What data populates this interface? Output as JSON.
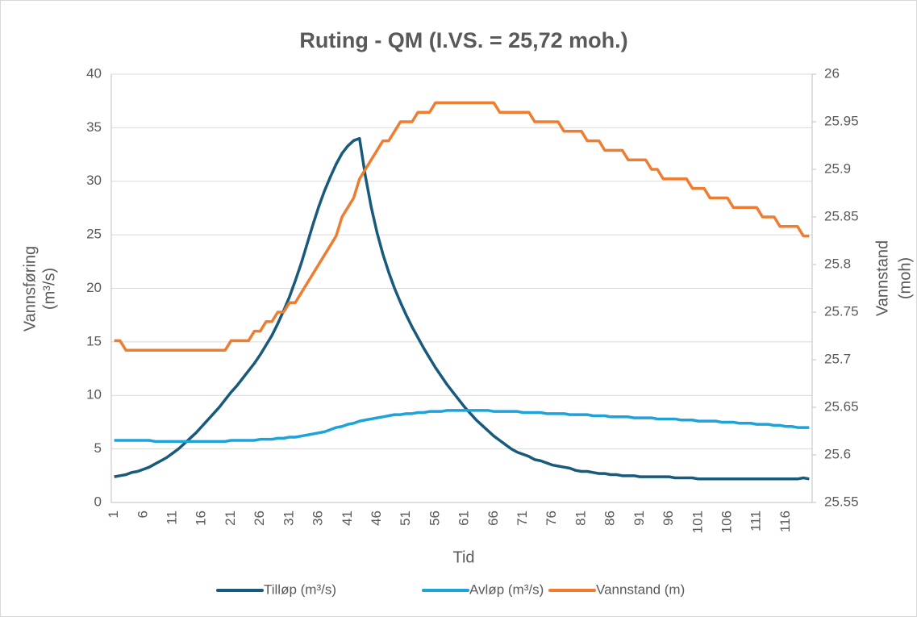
{
  "chart_data": {
    "type": "line",
    "title": "Ruting - QM  (I.VS. = 25,72 moh.)",
    "x_label": "Tid",
    "y_label": [
      "Vannsføring",
      "(m³/s)"
    ],
    "y2_label": [
      "Vannstand",
      "(moh)"
    ],
    "categories": [
      1,
      null,
      null,
      null,
      null,
      6,
      null,
      null,
      null,
      null,
      11,
      null,
      null,
      null,
      null,
      16,
      null,
      null,
      null,
      null,
      21,
      null,
      null,
      null,
      null,
      26,
      null,
      null,
      null,
      null,
      31,
      null,
      null,
      null,
      null,
      36,
      null,
      null,
      null,
      null,
      41,
      null,
      null,
      null,
      null,
      46,
      null,
      null,
      null,
      null,
      51,
      null,
      null,
      null,
      null,
      56,
      null,
      null,
      null,
      null,
      61,
      null,
      null,
      null,
      null,
      66,
      null,
      null,
      null,
      null,
      71,
      null,
      null,
      null,
      null,
      76,
      null,
      null,
      null,
      null,
      81,
      null,
      null,
      null,
      null,
      86,
      null,
      null,
      null,
      null,
      91,
      null,
      null,
      null,
      null,
      96,
      null,
      null,
      null,
      null,
      101,
      null,
      null,
      null,
      null,
      106,
      null,
      null,
      null,
      null,
      111,
      null,
      null,
      null,
      null,
      116,
      null,
      null,
      null,
      null
    ],
    "ylim": [
      0,
      40
    ],
    "yticks": [
      0,
      5,
      10,
      15,
      20,
      25,
      30,
      35,
      40
    ],
    "y2lim": [
      25.55,
      26
    ],
    "y2ticks": [
      25.55,
      25.6,
      25.65,
      25.7,
      25.75,
      25.8,
      25.85,
      25.9,
      25.95,
      26
    ],
    "grid": true,
    "legend": "bottom",
    "series": [
      {
        "name": "Tilløp (m³/s)",
        "color": "#175a7c",
        "values": [
          2.4,
          2.5,
          2.6,
          2.8,
          2.9,
          3.1,
          3.3,
          3.6,
          3.9,
          4.2,
          4.6,
          5.0,
          5.5,
          6.0,
          6.5,
          7.1,
          7.7,
          8.3,
          8.9,
          9.6,
          10.3,
          10.9,
          11.6,
          12.3,
          13.0,
          13.8,
          14.7,
          15.6,
          16.7,
          17.9,
          19.2,
          20.7,
          22.3,
          24.1,
          25.9,
          27.6,
          29.1,
          30.4,
          31.6,
          32.6,
          33.3,
          33.8,
          34.0,
          30.5,
          27.6,
          25.2,
          23.2,
          21.5,
          20.0,
          18.7,
          17.5,
          16.4,
          15.4,
          14.4,
          13.5,
          12.6,
          11.8,
          11.0,
          10.3,
          9.6,
          8.9,
          8.3,
          7.7,
          7.2,
          6.7,
          6.2,
          5.8,
          5.4,
          5.0,
          4.7,
          4.5,
          4.3,
          4.0,
          3.9,
          3.7,
          3.5,
          3.4,
          3.3,
          3.2,
          3.0,
          2.9,
          2.9,
          2.8,
          2.7,
          2.7,
          2.6,
          2.6,
          2.5,
          2.5,
          2.5,
          2.4,
          2.4,
          2.4,
          2.4,
          2.4,
          2.4,
          2.3,
          2.3,
          2.3,
          2.3,
          2.2,
          2.2,
          2.2,
          2.2,
          2.2,
          2.2,
          2.2,
          2.2,
          2.2,
          2.2,
          2.2,
          2.2,
          2.2,
          2.2,
          2.2,
          2.2,
          2.2,
          2.2,
          2.3,
          2.2
        ]
      },
      {
        "name": "Avløp (m³/s)",
        "color": "#1ea2da",
        "values": [
          5.8,
          5.8,
          5.8,
          5.8,
          5.8,
          5.8,
          5.8,
          5.7,
          5.7,
          5.7,
          5.7,
          5.7,
          5.7,
          5.7,
          5.7,
          5.7,
          5.7,
          5.7,
          5.7,
          5.7,
          5.8,
          5.8,
          5.8,
          5.8,
          5.8,
          5.9,
          5.9,
          5.9,
          6.0,
          6.0,
          6.1,
          6.1,
          6.2,
          6.3,
          6.4,
          6.5,
          6.6,
          6.8,
          7.0,
          7.1,
          7.3,
          7.4,
          7.6,
          7.7,
          7.8,
          7.9,
          8.0,
          8.1,
          8.2,
          8.2,
          8.3,
          8.3,
          8.4,
          8.4,
          8.5,
          8.5,
          8.5,
          8.6,
          8.6,
          8.6,
          8.6,
          8.6,
          8.6,
          8.6,
          8.6,
          8.5,
          8.5,
          8.5,
          8.5,
          8.5,
          8.4,
          8.4,
          8.4,
          8.4,
          8.3,
          8.3,
          8.3,
          8.3,
          8.2,
          8.2,
          8.2,
          8.2,
          8.1,
          8.1,
          8.1,
          8.0,
          8.0,
          8.0,
          8.0,
          7.9,
          7.9,
          7.9,
          7.9,
          7.8,
          7.8,
          7.8,
          7.8,
          7.7,
          7.7,
          7.7,
          7.6,
          7.6,
          7.6,
          7.6,
          7.5,
          7.5,
          7.5,
          7.4,
          7.4,
          7.4,
          7.3,
          7.3,
          7.3,
          7.2,
          7.2,
          7.1,
          7.1,
          7.0,
          7.0,
          7.0
        ]
      },
      {
        "name": "Vannstand (m)",
        "color": "#ee7d31",
        "axis": "y2",
        "values": [
          25.72,
          25.72,
          25.71,
          25.71,
          25.71,
          25.71,
          25.71,
          25.71,
          25.71,
          25.71,
          25.71,
          25.71,
          25.71,
          25.71,
          25.71,
          25.71,
          25.71,
          25.71,
          25.71,
          25.71,
          25.72,
          25.72,
          25.72,
          25.72,
          25.73,
          25.73,
          25.74,
          25.74,
          25.75,
          25.75,
          25.76,
          25.76,
          25.77,
          25.78,
          25.79,
          25.8,
          25.81,
          25.82,
          25.83,
          25.85,
          25.86,
          25.87,
          25.89,
          25.9,
          25.91,
          25.92,
          25.93,
          25.93,
          25.94,
          25.95,
          25.95,
          25.95,
          25.96,
          25.96,
          25.96,
          25.97,
          25.97,
          25.97,
          25.97,
          25.97,
          25.97,
          25.97,
          25.97,
          25.97,
          25.97,
          25.97,
          25.96,
          25.96,
          25.96,
          25.96,
          25.96,
          25.96,
          25.95,
          25.95,
          25.95,
          25.95,
          25.95,
          25.94,
          25.94,
          25.94,
          25.94,
          25.93,
          25.93,
          25.93,
          25.92,
          25.92,
          25.92,
          25.92,
          25.91,
          25.91,
          25.91,
          25.91,
          25.9,
          25.9,
          25.89,
          25.89,
          25.89,
          25.89,
          25.89,
          25.88,
          25.88,
          25.88,
          25.87,
          25.87,
          25.87,
          25.87,
          25.86,
          25.86,
          25.86,
          25.86,
          25.86,
          25.85,
          25.85,
          25.85,
          25.84,
          25.84,
          25.84,
          25.84,
          25.83,
          25.83
        ]
      }
    ]
  }
}
